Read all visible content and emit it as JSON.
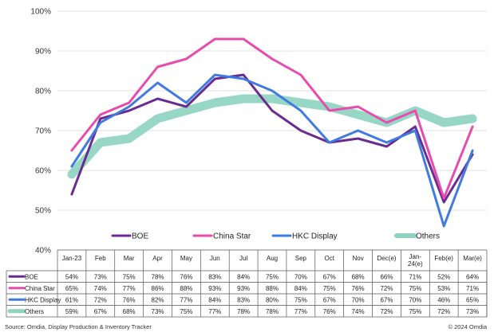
{
  "chart_data": {
    "type": "line",
    "categories": [
      "Jan-23",
      "Feb",
      "Mar",
      "Apr",
      "May",
      "Jun",
      "Jul",
      "Aug",
      "Sep",
      "Oct",
      "Nov",
      "Dec(e)",
      "Jan-\n24(e)",
      "Feb(e)",
      "Mar(e)"
    ],
    "ylim": [
      40,
      100
    ],
    "yticks": [
      40,
      50,
      60,
      70,
      80,
      90,
      100
    ],
    "ytick_labels": [
      "40%",
      "50%",
      "60%",
      "70%",
      "80%",
      "90%",
      "100%"
    ],
    "grid": true,
    "legend_position": "bottom",
    "series": [
      {
        "name": "BOE",
        "color": "#6A2C91",
        "values": [
          54,
          73,
          75,
          78,
          76,
          83,
          84,
          75,
          70,
          67,
          68,
          66,
          71,
          52,
          64
        ],
        "labels": [
          "54%",
          "73%",
          "75%",
          "78%",
          "76%",
          "83%",
          "84%",
          "75%",
          "70%",
          "67%",
          "68%",
          "66%",
          "71%",
          "52%",
          "64%"
        ]
      },
      {
        "name": "China Star",
        "color": "#E84BAE",
        "values": [
          65,
          74,
          77,
          86,
          88,
          93,
          93,
          88,
          84,
          75,
          76,
          72,
          75,
          53,
          71
        ],
        "labels": [
          "65%",
          "74%",
          "77%",
          "86%",
          "88%",
          "93%",
          "93%",
          "88%",
          "84%",
          "75%",
          "76%",
          "72%",
          "75%",
          "53%",
          "71%"
        ]
      },
      {
        "name": "HKC Display",
        "color": "#3F7BE0",
        "values": [
          61,
          72,
          76,
          82,
          77,
          84,
          83,
          80,
          75,
          67,
          70,
          67,
          70,
          46,
          65
        ],
        "labels": [
          "61%",
          "72%",
          "76%",
          "82%",
          "77%",
          "84%",
          "83%",
          "80%",
          "75%",
          "67%",
          "70%",
          "67%",
          "70%",
          "46%",
          "65%"
        ]
      },
      {
        "name": "Others",
        "color": "#8DD3BF",
        "values": [
          59,
          67,
          68,
          73,
          75,
          77,
          78,
          78,
          77,
          76,
          74,
          72,
          75,
          72,
          73
        ],
        "labels": [
          "59%",
          "67%",
          "68%",
          "73%",
          "75%",
          "77%",
          "78%",
          "78%",
          "77%",
          "76%",
          "74%",
          "72%",
          "75%",
          "72%",
          "73%"
        ]
      }
    ]
  },
  "footer": {
    "source": "Source: Omdia, Display Production & Inventory Tracker",
    "copyright": "© 2024 Omdia"
  }
}
